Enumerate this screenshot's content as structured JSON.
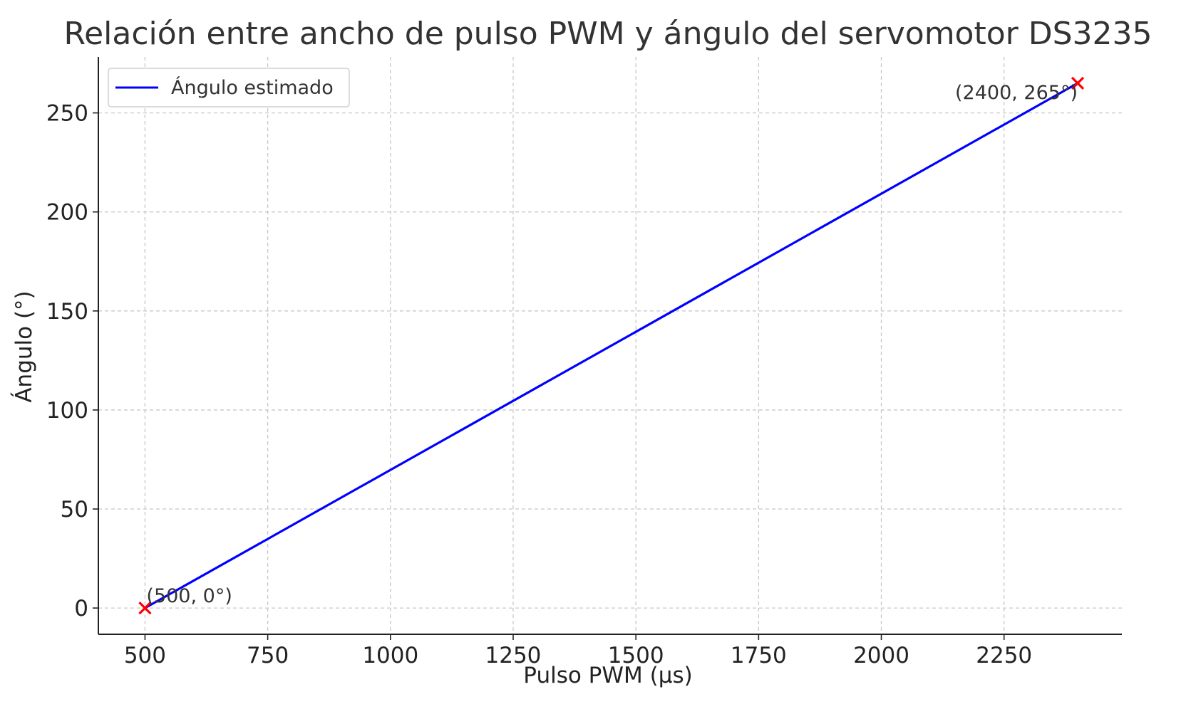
{
  "chart_data": {
    "type": "line",
    "title": "Relación entre ancho de pulso PWM y ángulo del servomotor DS3235",
    "xlabel": "Pulso PWM (µs)",
    "ylabel": "Ángulo (°)",
    "xlim": [
      405,
      2490
    ],
    "ylim": [
      -13.25,
      278.25
    ],
    "x_ticks": [
      500,
      750,
      1000,
      1250,
      1500,
      1750,
      2000,
      2250
    ],
    "x_tick_labels": [
      "500",
      "750",
      "1000",
      "1250",
      "1500",
      "1750",
      "2000",
      "2250"
    ],
    "y_ticks": [
      0,
      50,
      100,
      150,
      200,
      250
    ],
    "y_tick_labels": [
      "0",
      "50",
      "100",
      "150",
      "200",
      "250"
    ],
    "grid": true,
    "legend_position": "top-left",
    "series": [
      {
        "name": "Ángulo estimado",
        "color": "#0000ff",
        "x": [
          500,
          2400
        ],
        "y": [
          0,
          265
        ]
      }
    ],
    "markers": [
      {
        "x": 500,
        "y": 0,
        "label": "(500, 0°)",
        "color": "#ff0000",
        "label_anchor": "right"
      },
      {
        "x": 2400,
        "y": 265,
        "label": "(2400, 265°)",
        "color": "#ff0000",
        "label_anchor": "left"
      }
    ]
  },
  "colors": {
    "axis": "#222222",
    "grid": "#c8c8c8",
    "text": "#333333"
  }
}
